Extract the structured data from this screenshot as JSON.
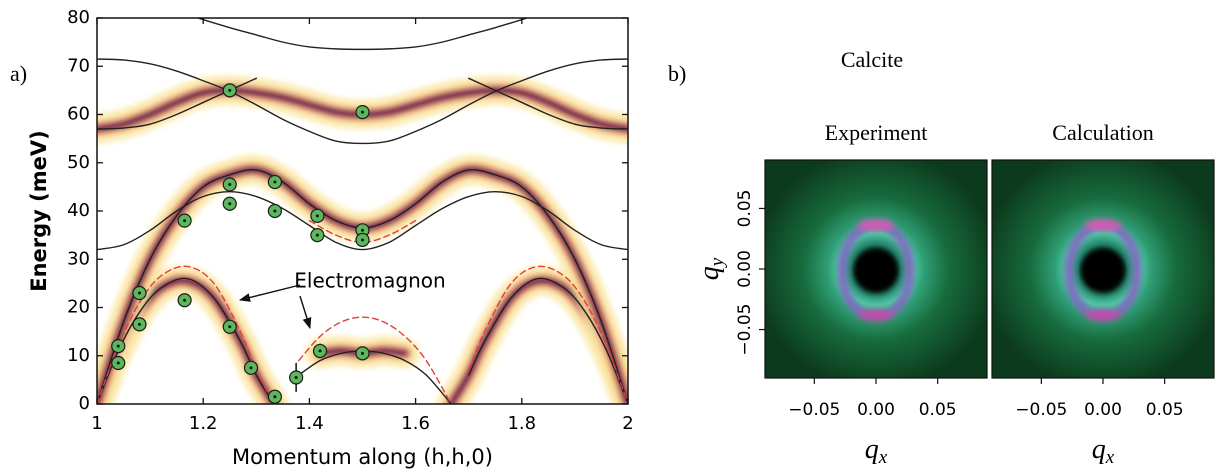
{
  "chart_data": [
    {
      "type": "dispersion",
      "label": "a)",
      "xlabel": "Momentum along (h,h,0)",
      "ylabel": "Energy  (meV)",
      "annotation": "Electromagnon",
      "xlim": [
        1,
        2
      ],
      "ylim": [
        0,
        80
      ],
      "xticks": [
        1,
        1.2,
        1.4,
        1.6,
        1.8,
        2
      ],
      "yticks": [
        0,
        10,
        20,
        30,
        40,
        50,
        60,
        70,
        80
      ],
      "series": [
        {
          "style": "band",
          "x": [
            1,
            1.04,
            1.08,
            1.12,
            1.17,
            1.22,
            1.27,
            1.3,
            1.333,
            1.333,
            1.42,
            1.46,
            1.5,
            1.54,
            1.58,
            1.58,
            1.667,
            1.7,
            1.73,
            1.78,
            1.83,
            1.88,
            1.92,
            1.96,
            2
          ],
          "values": [
            0,
            11,
            19,
            24,
            25.5,
            22,
            13,
            6,
            0,
            null,
            10.5,
            11,
            10.5,
            11,
            10.5,
            null,
            0,
            6,
            13,
            22,
            25.5,
            24,
            19,
            11,
            0
          ]
        },
        {
          "style": "band",
          "x": [
            1,
            1.05,
            1.1,
            1.15,
            1.2,
            1.25,
            1.3,
            1.35,
            1.4,
            1.45,
            1.5,
            1.55,
            1.6,
            1.65,
            1.7,
            1.75,
            1.8,
            1.85,
            1.9,
            1.95,
            2
          ],
          "values": [
            0,
            17,
            30,
            39,
            45,
            47.5,
            48.5,
            46,
            41.5,
            38,
            36.5,
            38,
            41.5,
            46,
            48.5,
            47.5,
            45,
            39,
            30,
            17,
            0
          ]
        },
        {
          "style": "band",
          "x": [
            1,
            1.05,
            1.1,
            1.15,
            1.2,
            1.25,
            1.3,
            1.35,
            1.4,
            1.45,
            1.5,
            1.55,
            1.6,
            1.65,
            1.7,
            1.75,
            1.8,
            1.85,
            1.9,
            1.95,
            2
          ],
          "values": [
            57,
            58,
            60,
            62.5,
            64.5,
            65,
            64.5,
            63.5,
            62,
            60.5,
            60,
            60.5,
            62,
            63.5,
            64.5,
            65,
            64.5,
            62.5,
            60,
            58,
            57
          ]
        },
        {
          "style": "solid",
          "color": "#222222",
          "x": [
            1,
            1.04,
            1.08,
            1.12,
            1.17,
            1.22,
            1.27,
            1.3,
            1.333,
            1.333,
            1.38,
            1.42,
            1.46,
            1.5,
            1.54,
            1.58,
            1.62,
            1.667,
            1.667,
            1.7,
            1.73,
            1.78,
            1.83,
            1.88,
            1.92,
            1.96,
            2
          ],
          "values": [
            0,
            11,
            19,
            24,
            26,
            22,
            13,
            6,
            0,
            null,
            6,
            9,
            10.5,
            11,
            10.5,
            9,
            6,
            0,
            null,
            6,
            13,
            22,
            26,
            24,
            19,
            11,
            0
          ]
        },
        {
          "style": "solid",
          "color": "#222222",
          "x": [
            1,
            1.05,
            1.1,
            1.15,
            1.2,
            1.25,
            1.3,
            1.35,
            1.4,
            1.45,
            1.5,
            1.55,
            1.6,
            1.65,
            1.7,
            1.75,
            1.8,
            1.85,
            1.9,
            1.95,
            2
          ],
          "values": [
            32,
            33,
            36,
            40,
            43,
            44,
            43,
            40.5,
            37,
            33.5,
            32,
            33.5,
            37,
            40.5,
            43,
            44,
            43,
            40,
            36,
            33,
            32
          ]
        },
        {
          "style": "solid",
          "color": "#222222",
          "x": [
            1,
            1.05,
            1.1,
            1.15,
            1.2,
            1.25,
            1.3,
            1.35,
            1.4,
            1.45,
            1.5,
            1.55,
            1.6,
            1.65,
            1.7,
            1.75,
            1.8,
            1.85,
            1.9,
            1.95,
            2
          ],
          "values": [
            0,
            17,
            30,
            39,
            45,
            47.5,
            48.5,
            46,
            41.5,
            38,
            36.5,
            38,
            41.5,
            46,
            48.5,
            47.5,
            45,
            39,
            30,
            17,
            0
          ]
        },
        {
          "style": "solid",
          "color": "#222222",
          "x": [
            1,
            1.05,
            1.1,
            1.15,
            1.2,
            1.25,
            1.3,
            1.35,
            1.4,
            1.45,
            1.5,
            1.55,
            1.6,
            1.65,
            1.7,
            1.75,
            1.8,
            1.85,
            1.9,
            1.95,
            2
          ],
          "values": [
            71.5,
            71.3,
            70.5,
            69,
            67,
            64.8,
            62,
            59,
            56.5,
            54.5,
            54,
            54.5,
            56.5,
            59,
            62,
            64.8,
            67,
            69,
            70.5,
            71.3,
            71.5
          ]
        },
        {
          "style": "solid",
          "color": "#222222",
          "x": [
            1,
            1.05,
            1.1,
            1.15,
            1.2,
            1.25,
            1.3,
            1.5,
            1.7,
            1.75,
            1.8,
            1.85,
            1.9,
            1.95,
            2
          ],
          "values": [
            57,
            57.2,
            58,
            60,
            62.5,
            65,
            67.5,
            null,
            67.5,
            65,
            62.5,
            60,
            58,
            57.2,
            57
          ]
        },
        {
          "style": "solid",
          "color": "#222222",
          "x": [
            1.19,
            1.25,
            1.3,
            1.35,
            1.4,
            1.45,
            1.5,
            1.55,
            1.6,
            1.65,
            1.7,
            1.75,
            1.81
          ],
          "values": [
            80,
            78,
            76.5,
            75,
            74,
            73.6,
            73.5,
            73.6,
            74,
            75,
            76.5,
            78,
            80
          ]
        },
        {
          "style": "dashed",
          "color": "#e0403a",
          "x": [
            1,
            1.04,
            1.08,
            1.12,
            1.17,
            1.22,
            1.27,
            1.3,
            1.333,
            1.333,
            1.38,
            1.42,
            1.46,
            1.5,
            1.54,
            1.58,
            1.62,
            1.667,
            1.667,
            1.7,
            1.73,
            1.78,
            1.83,
            1.88,
            1.92,
            1.96,
            2
          ],
          "values": [
            0,
            12,
            21,
            26.5,
            28.5,
            25,
            15,
            7,
            0,
            null,
            9,
            14,
            17,
            18,
            17,
            14,
            9,
            0,
            null,
            7,
            15,
            25,
            28.5,
            26.5,
            21,
            12,
            0
          ]
        },
        {
          "style": "dashed",
          "color": "#e0403a",
          "x": [
            1.4,
            1.45,
            1.5,
            1.55,
            1.6
          ],
          "values": [
            38,
            35,
            33.5,
            35,
            38
          ]
        },
        {
          "style": "points",
          "color": "#5cb85c",
          "x": [
            1.04,
            1.04,
            1.08,
            1.08,
            1.165,
            1.165,
            1.25,
            1.25,
            1.25,
            1.25,
            1.29,
            1.335,
            1.335,
            1.335,
            1.375,
            1.415,
            1.415,
            1.42,
            1.5,
            1.5,
            1.5,
            1.5
          ],
          "values": [
            12,
            8.5,
            23,
            16.5,
            38,
            21.5,
            65,
            45.5,
            41.5,
            16,
            7.5,
            46,
            40,
            1.5,
            5.5,
            39,
            35,
            11,
            60.5,
            36,
            34,
            10.5
          ],
          "errors": [
            0.5,
            0.5,
            0.5,
            0.5,
            0.5,
            0.5,
            0.5,
            1.5,
            0.5,
            0.5,
            0.5,
            0.5,
            0.5,
            0.5,
            3,
            0.5,
            0.5,
            1.5,
            0.5,
            0.5,
            1,
            0.5
          ]
        }
      ]
    },
    {
      "type": "heatmap",
      "label": "b)",
      "title": "Calcite",
      "panels": [
        {
          "title": "Experiment"
        },
        {
          "title": "Calculation"
        }
      ],
      "xlabel_symbol": "q",
      "xlabel_subscript": "x",
      "ylabel_symbol": "q",
      "ylabel_subscript": "y",
      "xlim": [
        -0.09,
        0.09
      ],
      "ylim": [
        -0.09,
        0.09
      ],
      "xticks": [
        {
          "value": -0.05,
          "label": "−0.05"
        },
        {
          "value": 0,
          "label": "0.00"
        },
        {
          "value": 0.05,
          "label": "0.05"
        }
      ],
      "yticks": [
        {
          "value": -0.05,
          "label": "−0.05"
        },
        {
          "value": 0,
          "label": "0.00"
        },
        {
          "value": 0.05,
          "label": "0.05"
        }
      ]
    }
  ]
}
